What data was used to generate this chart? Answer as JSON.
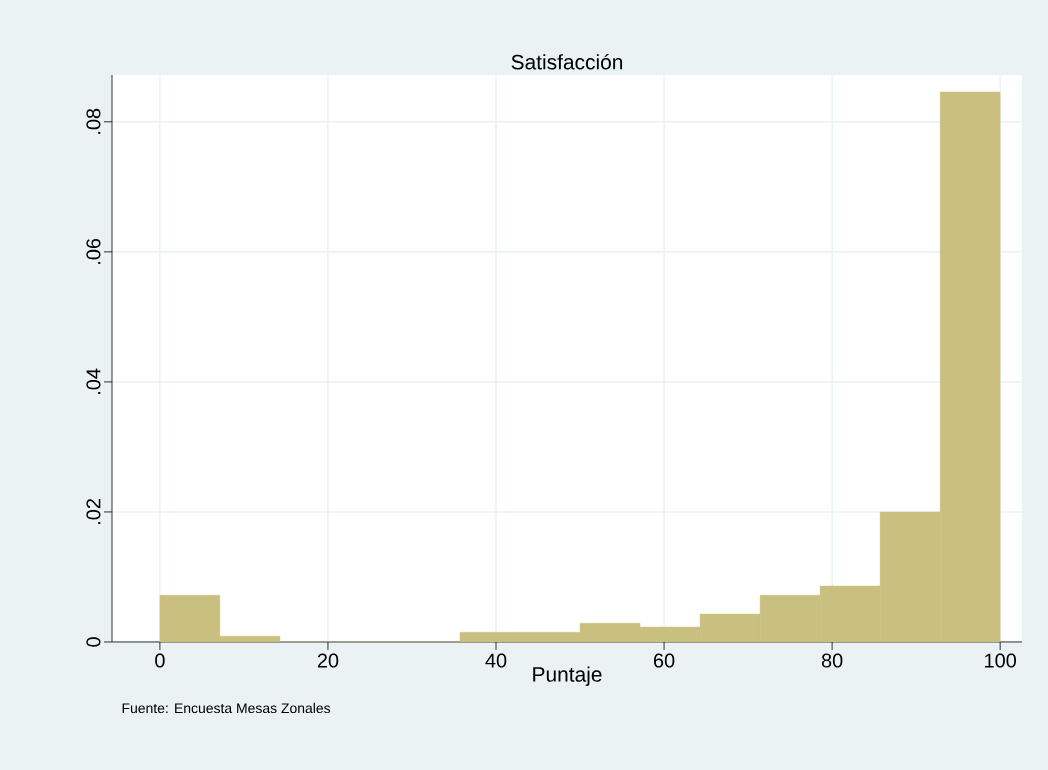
{
  "chart_data": {
    "type": "histogram",
    "title": "Satisfacción",
    "xlabel": "Puntaje",
    "annotations": [
      "Fuente: Encuesta Mesas Zonales"
    ],
    "bins": [
      0,
      7.14,
      14.29,
      21.43,
      28.57,
      35.71,
      42.86,
      50,
      57.14,
      64.29,
      71.43,
      78.57,
      85.71,
      92.86,
      100
    ],
    "values": [
      0.0072,
      0.0009,
      0,
      0,
      0,
      0.0015,
      0.0015,
      0.0029,
      0.0023,
      0.0043,
      0.0072,
      0.0086,
      0.02,
      0.0846
    ],
    "color": "#c9bf7f",
    "xlim": [
      -5.7,
      102.6
    ],
    "ylim": [
      0,
      0.0872
    ],
    "xticks": [
      0,
      20,
      40,
      60,
      80,
      100
    ],
    "yticks": [
      0,
      {
        "value": 0.02,
        "label": ".02"
      },
      {
        "value": 0.04,
        "label": ".04"
      },
      {
        "value": 0.06,
        "label": ".06"
      },
      {
        "value": 0.08,
        "label": ".08"
      }
    ],
    "grid": true
  }
}
